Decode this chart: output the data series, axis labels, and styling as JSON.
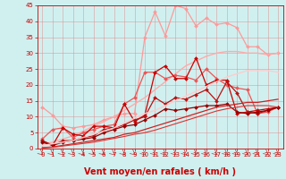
{
  "xlabel": "Vent moyen/en rafales ( km/h )",
  "xlim": [
    0,
    23
  ],
  "ylim": [
    0,
    45
  ],
  "xticks": [
    0,
    1,
    2,
    3,
    4,
    5,
    6,
    7,
    8,
    9,
    10,
    11,
    12,
    13,
    14,
    15,
    16,
    17,
    18,
    19,
    20,
    21,
    22,
    23
  ],
  "yticks": [
    0,
    5,
    10,
    15,
    20,
    25,
    30,
    35,
    40,
    45
  ],
  "bg_color": "#d0f0f0",
  "grid_color": "#e08888",
  "tick_color": "#cc0000",
  "lines": [
    {
      "x": [
        0,
        1,
        2,
        3,
        4,
        5,
        6,
        7,
        8,
        9,
        10,
        11,
        12,
        13,
        14,
        15,
        16,
        17,
        18,
        19,
        20,
        21,
        22,
        23
      ],
      "y": [
        13.0,
        10.5,
        7.0,
        6.5,
        7.0,
        7.5,
        9.0,
        10.0,
        11.0,
        11.0,
        35.0,
        43.0,
        35.5,
        45.0,
        44.0,
        38.5,
        41.0,
        39.0,
        39.5,
        38.0,
        32.0,
        32.0,
        29.5,
        30.0
      ],
      "color": "#ff9999",
      "lw": 0.9,
      "marker": "D",
      "ms": 2.0,
      "alpha": 1.0
    },
    {
      "x": [
        0,
        1,
        2,
        3,
        4,
        5,
        6,
        7,
        8,
        9,
        10,
        11,
        12,
        13,
        14,
        15,
        16,
        17,
        18,
        19,
        20,
        21,
        22,
        23
      ],
      "y": [
        1.5,
        2.0,
        3.0,
        4.0,
        5.5,
        7.0,
        8.5,
        10.0,
        12.0,
        14.0,
        16.0,
        18.5,
        21.0,
        23.5,
        26.0,
        27.5,
        29.0,
        30.0,
        30.5,
        30.5,
        30.0,
        30.0,
        29.5,
        30.0
      ],
      "color": "#ffaaaa",
      "lw": 1.0,
      "marker": null,
      "ms": 0,
      "alpha": 1.0
    },
    {
      "x": [
        0,
        1,
        2,
        3,
        4,
        5,
        6,
        7,
        8,
        9,
        10,
        11,
        12,
        13,
        14,
        15,
        16,
        17,
        18,
        19,
        20,
        21,
        22,
        23
      ],
      "y": [
        3.0,
        6.0,
        6.5,
        3.5,
        5.0,
        6.0,
        7.0,
        7.5,
        14.0,
        16.0,
        24.0,
        24.0,
        22.0,
        23.0,
        22.5,
        21.5,
        25.0,
        22.0,
        20.0,
        19.0,
        18.5,
        11.0,
        11.5,
        13.0
      ],
      "color": "#ee5555",
      "lw": 0.9,
      "marker": "D",
      "ms": 2.0,
      "alpha": 1.0
    },
    {
      "x": [
        0,
        1,
        2,
        3,
        4,
        5,
        6,
        7,
        8,
        9,
        10,
        11,
        12,
        13,
        14,
        15,
        16,
        17,
        18,
        19,
        20,
        21,
        22,
        23
      ],
      "y": [
        2.5,
        1.0,
        6.5,
        4.5,
        4.0,
        7.0,
        7.0,
        6.5,
        14.0,
        8.5,
        10.5,
        24.0,
        26.0,
        22.0,
        22.0,
        28.5,
        20.0,
        21.5,
        21.5,
        11.0,
        11.5,
        12.0,
        12.5,
        13.0
      ],
      "color": "#cc0000",
      "lw": 0.9,
      "marker": "D",
      "ms": 2.0,
      "alpha": 1.0
    },
    {
      "x": [
        0,
        1,
        2,
        3,
        4,
        5,
        6,
        7,
        8,
        9,
        10,
        11,
        12,
        13,
        14,
        15,
        16,
        17,
        18,
        19,
        20,
        21,
        22,
        23
      ],
      "y": [
        2.5,
        1.0,
        2.5,
        2.5,
        3.5,
        4.0,
        6.0,
        6.5,
        7.5,
        9.0,
        10.0,
        16.0,
        14.0,
        16.0,
        15.5,
        17.0,
        18.5,
        15.0,
        21.0,
        17.5,
        11.5,
        11.0,
        12.0,
        13.0
      ],
      "color": "#bb1111",
      "lw": 0.9,
      "marker": "D",
      "ms": 2.0,
      "alpha": 1.0
    },
    {
      "x": [
        0,
        1,
        2,
        3,
        4,
        5,
        6,
        7,
        8,
        9,
        10,
        11,
        12,
        13,
        14,
        15,
        16,
        17,
        18,
        19,
        20,
        21,
        22,
        23
      ],
      "y": [
        2.0,
        1.0,
        2.0,
        2.5,
        3.0,
        3.5,
        5.0,
        6.0,
        7.0,
        7.5,
        9.0,
        10.5,
        12.5,
        12.0,
        12.5,
        13.0,
        13.5,
        13.5,
        14.0,
        11.5,
        11.0,
        11.5,
        12.0,
        13.0
      ],
      "color": "#990000",
      "lw": 0.9,
      "marker": "D",
      "ms": 2.0,
      "alpha": 1.0
    },
    {
      "x": [
        0,
        1,
        2,
        3,
        4,
        5,
        6,
        7,
        8,
        9,
        10,
        11,
        12,
        13,
        14,
        15,
        16,
        17,
        18,
        19,
        20,
        21,
        22,
        23
      ],
      "y": [
        1.0,
        1.5,
        2.0,
        2.5,
        3.5,
        4.5,
        5.5,
        6.5,
        8.0,
        9.5,
        11.0,
        12.0,
        13.5,
        15.0,
        16.5,
        18.0,
        19.5,
        21.0,
        22.5,
        23.5,
        24.5,
        24.5,
        24.5,
        24.0
      ],
      "color": "#ffcccc",
      "lw": 1.0,
      "marker": null,
      "ms": 0,
      "alpha": 1.0
    },
    {
      "x": [
        0,
        1,
        2,
        3,
        4,
        5,
        6,
        7,
        8,
        9,
        10,
        11,
        12,
        13,
        14,
        15,
        16,
        17,
        18,
        19,
        20,
        21,
        22,
        23
      ],
      "y": [
        0.3,
        0.5,
        1.0,
        1.5,
        2.0,
        2.5,
        3.0,
        3.5,
        4.5,
        5.0,
        6.0,
        7.0,
        8.0,
        9.0,
        10.0,
        11.0,
        12.0,
        13.0,
        13.5,
        14.0,
        14.5,
        14.5,
        15.0,
        15.5
      ],
      "color": "#cc2222",
      "lw": 0.9,
      "marker": null,
      "ms": 0,
      "alpha": 1.0
    },
    {
      "x": [
        0,
        1,
        2,
        3,
        4,
        5,
        6,
        7,
        8,
        9,
        10,
        11,
        12,
        13,
        14,
        15,
        16,
        17,
        18,
        19,
        20,
        21,
        22,
        23
      ],
      "y": [
        0.2,
        0.4,
        0.8,
        1.2,
        1.6,
        2.0,
        2.6,
        3.2,
        3.8,
        4.5,
        5.0,
        5.8,
        6.8,
        7.8,
        8.8,
        9.8,
        10.8,
        11.8,
        12.5,
        13.0,
        13.5,
        13.5,
        13.5,
        13.0
      ],
      "color": "#dd3333",
      "lw": 0.8,
      "marker": null,
      "ms": 0,
      "alpha": 1.0
    }
  ],
  "axis_fontsize": 6.5,
  "tick_fontsize": 5.0,
  "xlabel_fontsize": 7.0
}
